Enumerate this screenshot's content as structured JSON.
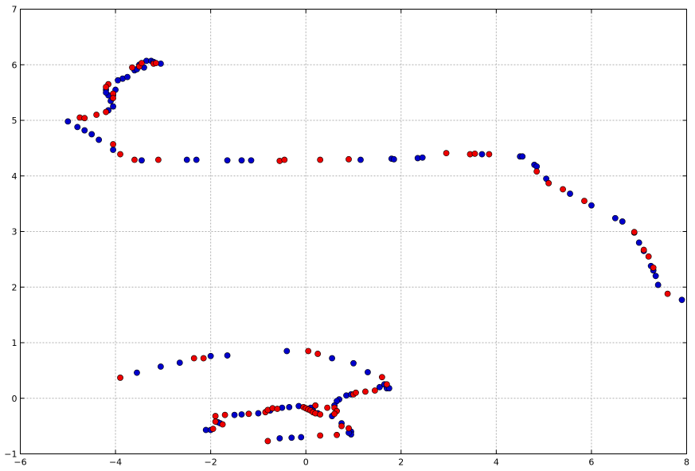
{
  "chart_data": {
    "type": "scatter",
    "title": "",
    "xlabel": "",
    "ylabel": "",
    "xlim": [
      -6,
      8
    ],
    "ylim": [
      -1,
      7
    ],
    "x_ticks": [
      -6,
      -4,
      -2,
      0,
      2,
      4,
      6,
      8
    ],
    "y_ticks": [
      -1,
      0,
      1,
      2,
      3,
      4,
      5,
      6,
      7
    ],
    "x_tick_labels": [
      "−6",
      "−4",
      "−2",
      "0",
      "2",
      "4",
      "6",
      "8"
    ],
    "y_tick_labels": [
      "−1",
      "0",
      "1",
      "2",
      "3",
      "4",
      "5",
      "6",
      "7"
    ],
    "grid": true,
    "legend": "none",
    "series": [
      {
        "color": "#0000cc",
        "points": [
          [
            -5.0,
            4.98
          ],
          [
            -4.8,
            4.88
          ],
          [
            -4.65,
            4.82
          ],
          [
            -4.5,
            4.75
          ],
          [
            -4.35,
            4.65
          ],
          [
            -4.05,
            4.47
          ],
          [
            -3.45,
            4.28
          ],
          [
            -2.5,
            4.29
          ],
          [
            -2.3,
            4.29
          ],
          [
            -1.65,
            4.28
          ],
          [
            -1.35,
            4.28
          ],
          [
            -1.15,
            4.28
          ],
          [
            1.15,
            4.29
          ],
          [
            1.8,
            4.31
          ],
          [
            1.85,
            4.3
          ],
          [
            2.35,
            4.32
          ],
          [
            2.45,
            4.33
          ],
          [
            3.7,
            4.39
          ],
          [
            4.5,
            4.35
          ],
          [
            4.55,
            4.35
          ],
          [
            4.8,
            4.2
          ],
          [
            4.85,
            4.17
          ],
          [
            5.05,
            3.95
          ],
          [
            5.55,
            3.68
          ],
          [
            6.0,
            3.47
          ],
          [
            6.5,
            3.24
          ],
          [
            6.65,
            3.18
          ],
          [
            6.9,
            2.98
          ],
          [
            7.0,
            2.8
          ],
          [
            7.1,
            2.65
          ],
          [
            7.25,
            2.38
          ],
          [
            7.3,
            2.3
          ],
          [
            7.35,
            2.2
          ],
          [
            7.4,
            2.04
          ],
          [
            7.9,
            1.77
          ],
          [
            -4.05,
            5.25
          ],
          [
            -4.1,
            5.35
          ],
          [
            -4.05,
            5.45
          ],
          [
            -4.15,
            5.45
          ],
          [
            -4.15,
            5.18
          ],
          [
            -4.2,
            5.55
          ],
          [
            -4.2,
            5.5
          ],
          [
            -4.0,
            5.55
          ],
          [
            -3.85,
            5.75
          ],
          [
            -3.95,
            5.72
          ],
          [
            -3.75,
            5.78
          ],
          [
            -3.6,
            5.9
          ],
          [
            -3.55,
            5.92
          ],
          [
            -3.4,
            5.95
          ],
          [
            -3.35,
            6.07
          ],
          [
            -3.25,
            6.07
          ],
          [
            -3.2,
            6.05
          ],
          [
            -3.05,
            6.02
          ],
          [
            -3.5,
            6.0
          ],
          [
            -3.55,
            0.46
          ],
          [
            -3.05,
            0.57
          ],
          [
            -2.65,
            0.64
          ],
          [
            -2.0,
            0.76
          ],
          [
            -1.65,
            0.77
          ],
          [
            -0.4,
            0.85
          ],
          [
            0.55,
            0.72
          ],
          [
            1.0,
            0.63
          ],
          [
            1.3,
            0.47
          ],
          [
            1.55,
            0.2
          ],
          [
            1.7,
            0.18
          ],
          [
            1.75,
            0.18
          ],
          [
            1.65,
            0.25
          ],
          [
            0.85,
            0.05
          ],
          [
            0.95,
            0.07
          ],
          [
            0.7,
            -0.02
          ],
          [
            0.65,
            -0.05
          ],
          [
            0.6,
            -0.13
          ],
          [
            -1.5,
            -0.3
          ],
          [
            -1.35,
            -0.29
          ],
          [
            -1.2,
            -0.28
          ],
          [
            -1.0,
            -0.27
          ],
          [
            -0.75,
            -0.22
          ],
          [
            -0.5,
            -0.17
          ],
          [
            -0.35,
            -0.16
          ],
          [
            -0.15,
            -0.14
          ],
          [
            0.1,
            -0.17
          ],
          [
            0.15,
            -0.22
          ],
          [
            0.25,
            -0.27
          ],
          [
            -2.1,
            -0.57
          ],
          [
            -2.0,
            -0.57
          ],
          [
            -1.85,
            -0.43
          ],
          [
            -1.8,
            -0.45
          ],
          [
            -0.55,
            -0.72
          ],
          [
            -0.3,
            -0.71
          ],
          [
            -0.1,
            -0.7
          ],
          [
            0.55,
            -0.32
          ],
          [
            0.75,
            -0.45
          ],
          [
            0.95,
            -0.6
          ],
          [
            0.95,
            -0.65
          ],
          [
            0.9,
            -0.62
          ]
        ]
      },
      {
        "color": "#ee0000",
        "points": [
          [
            -4.75,
            5.05
          ],
          [
            -4.65,
            5.04
          ],
          [
            -4.4,
            5.1
          ],
          [
            -4.2,
            5.15
          ],
          [
            -4.05,
            4.57
          ],
          [
            -3.9,
            4.39
          ],
          [
            -3.6,
            4.29
          ],
          [
            -3.1,
            4.29
          ],
          [
            -0.55,
            4.27
          ],
          [
            -0.45,
            4.29
          ],
          [
            0.3,
            4.29
          ],
          [
            0.9,
            4.3
          ],
          [
            2.95,
            4.41
          ],
          [
            3.45,
            4.39
          ],
          [
            3.55,
            4.4
          ],
          [
            3.85,
            4.39
          ],
          [
            4.85,
            4.08
          ],
          [
            5.1,
            3.87
          ],
          [
            5.4,
            3.76
          ],
          [
            5.85,
            3.55
          ],
          [
            6.9,
            2.99
          ],
          [
            7.1,
            2.67
          ],
          [
            7.2,
            2.55
          ],
          [
            7.3,
            2.35
          ],
          [
            7.6,
            1.88
          ],
          [
            -4.15,
            5.65
          ],
          [
            -4.2,
            5.6
          ],
          [
            -4.05,
            5.48
          ],
          [
            -4.05,
            5.4
          ],
          [
            -3.65,
            5.95
          ],
          [
            -3.5,
            5.97
          ],
          [
            -3.45,
            6.03
          ],
          [
            -3.2,
            6.02
          ],
          [
            -3.15,
            6.03
          ],
          [
            -3.9,
            0.37
          ],
          [
            -2.35,
            0.72
          ],
          [
            -2.15,
            0.72
          ],
          [
            0.05,
            0.85
          ],
          [
            0.25,
            0.8
          ],
          [
            1.0,
            0.07
          ],
          [
            1.05,
            0.1
          ],
          [
            1.25,
            0.12
          ],
          [
            1.45,
            0.14
          ],
          [
            1.6,
            0.38
          ],
          [
            1.7,
            0.25
          ],
          [
            -1.9,
            -0.32
          ],
          [
            -1.9,
            -0.42
          ],
          [
            -1.75,
            -0.47
          ],
          [
            -1.7,
            -0.3
          ],
          [
            -1.2,
            -0.28
          ],
          [
            -0.85,
            -0.25
          ],
          [
            -0.8,
            -0.21
          ],
          [
            -0.7,
            -0.18
          ],
          [
            -0.6,
            -0.19
          ],
          [
            -0.05,
            -0.16
          ],
          [
            0.0,
            -0.18
          ],
          [
            0.05,
            -0.2
          ],
          [
            0.1,
            -0.22
          ],
          [
            0.15,
            -0.25
          ],
          [
            0.2,
            -0.27
          ],
          [
            0.3,
            -0.29
          ],
          [
            0.2,
            -0.13
          ],
          [
            0.45,
            -0.17
          ],
          [
            0.6,
            -0.17
          ],
          [
            0.65,
            -0.23
          ],
          [
            0.6,
            -0.28
          ],
          [
            -1.95,
            -0.55
          ],
          [
            -0.8,
            -0.77
          ],
          [
            0.3,
            -0.67
          ],
          [
            0.65,
            -0.66
          ],
          [
            0.75,
            -0.5
          ],
          [
            0.9,
            -0.54
          ]
        ]
      }
    ]
  }
}
